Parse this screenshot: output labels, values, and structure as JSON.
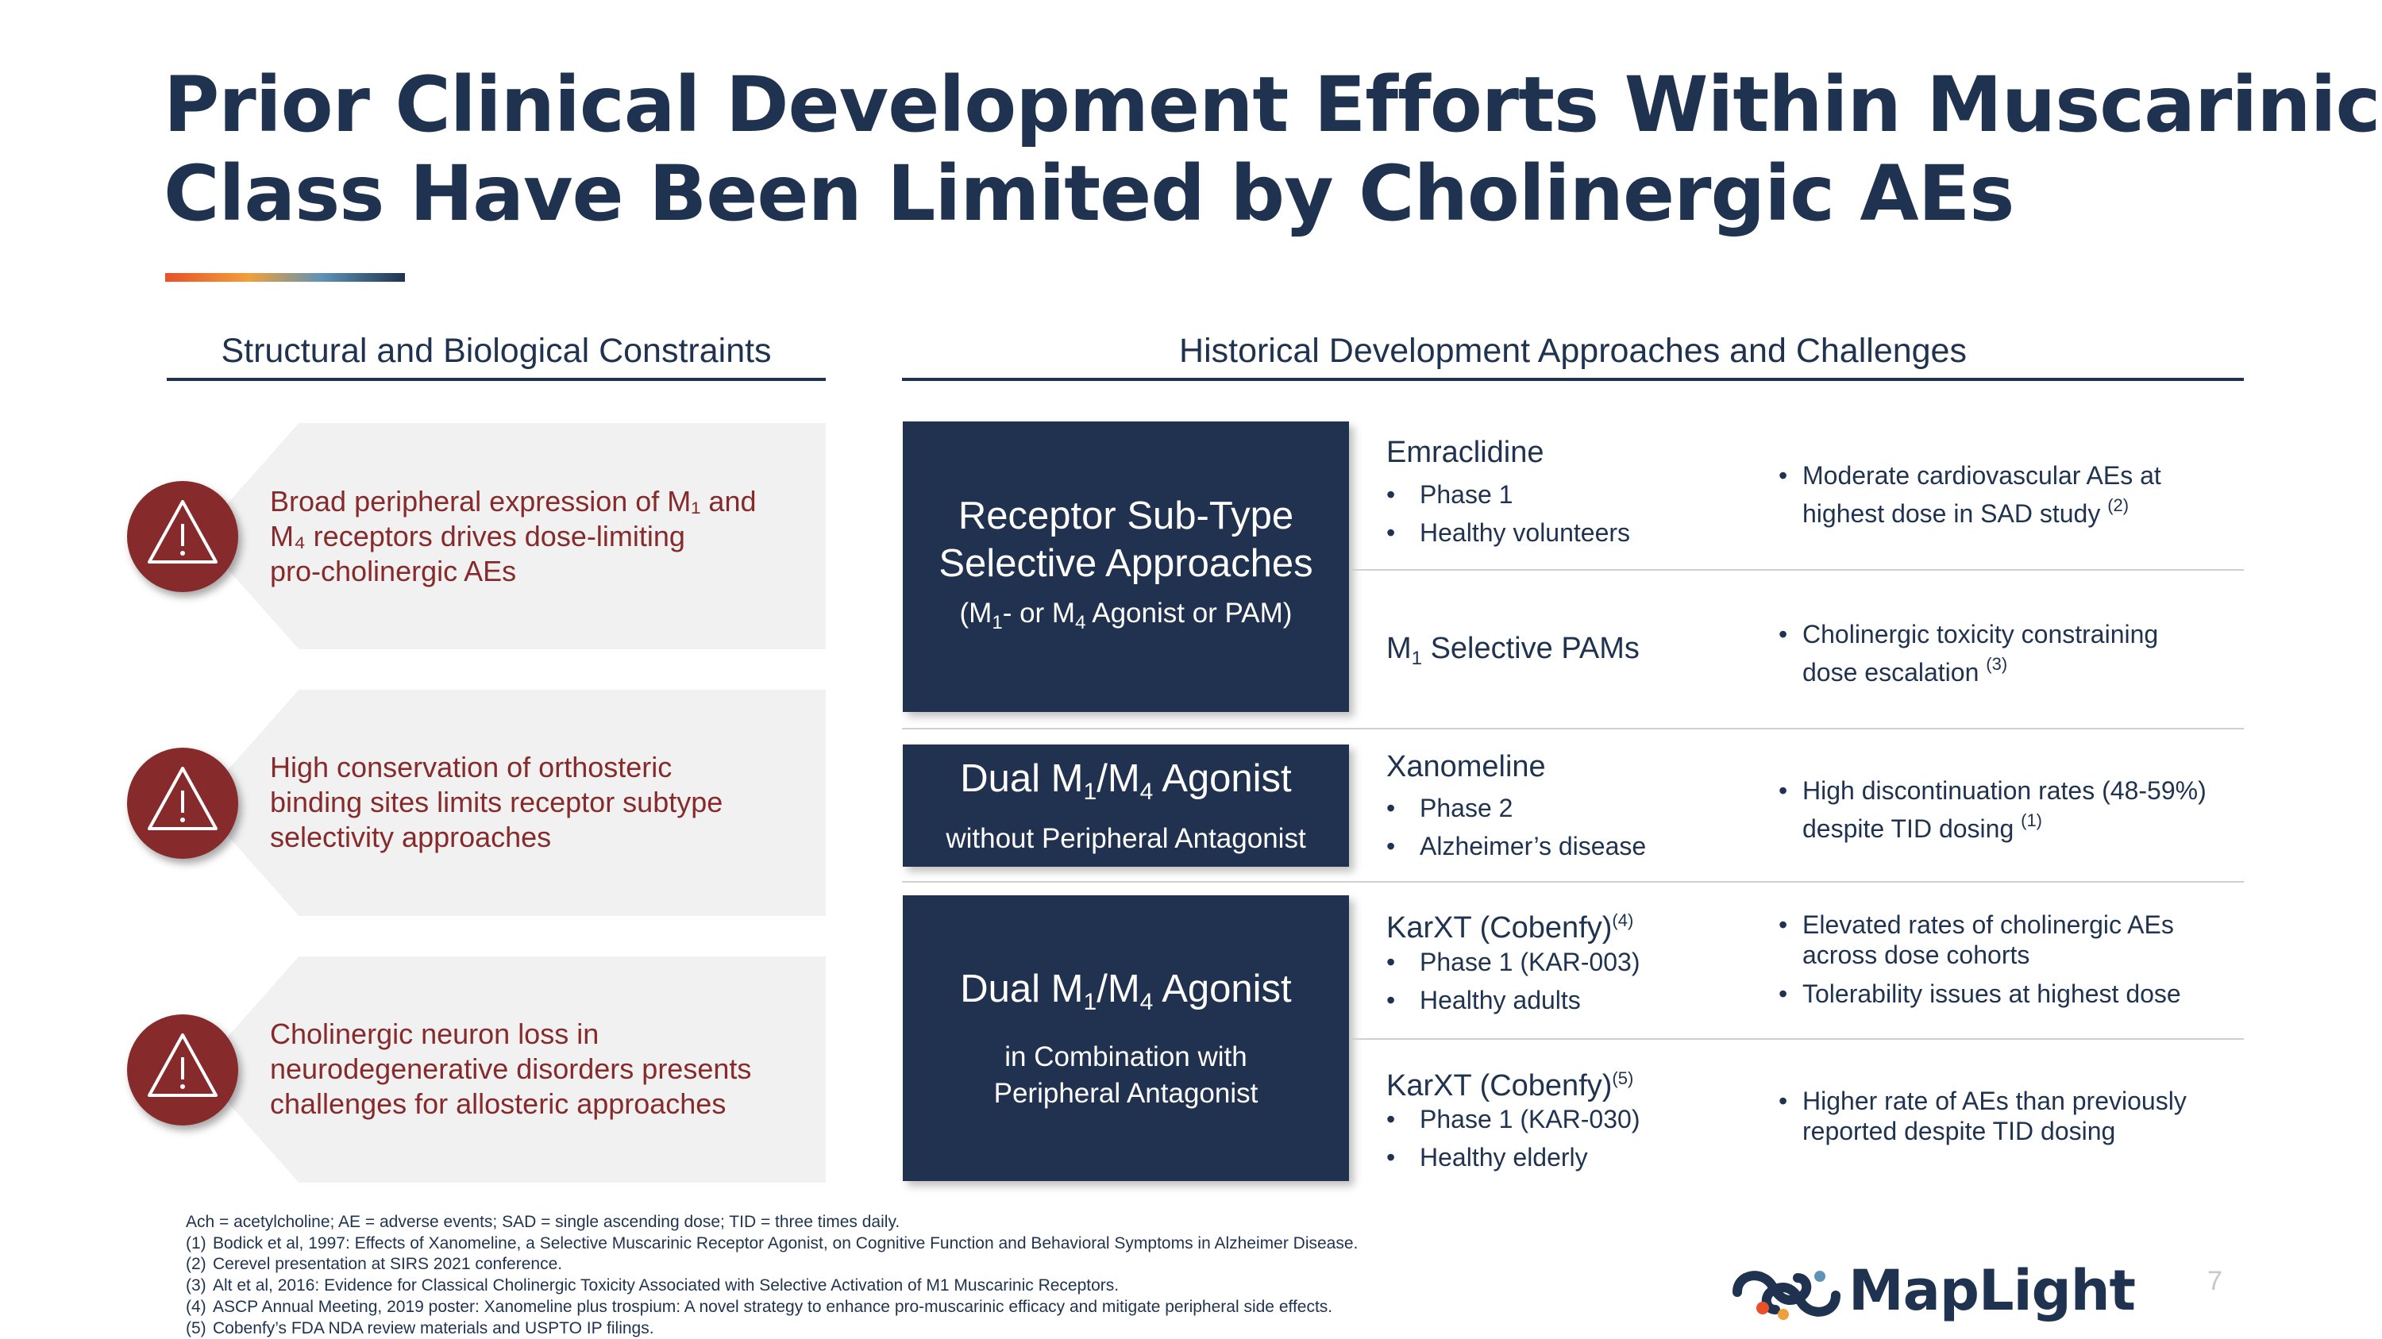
{
  "title": {
    "line1": "Prior Clinical Development Efforts Within Muscarinic",
    "line2": "Class Have Been Limited by Cholinergic AEs"
  },
  "left": {
    "heading": "Structural and Biological Constraints",
    "items": [
      {
        "icon": "warning-icon",
        "lines": [
          "Broad peripheral expression of M₁ and",
          "M₄ receptors drives dose-limiting",
          "pro-cholinergic AEs"
        ]
      },
      {
        "icon": "warning-icon",
        "lines": [
          "High conservation of orthosteric",
          "binding sites limits receptor subtype",
          "selectivity approaches"
        ]
      },
      {
        "icon": "warning-icon",
        "lines": [
          "Cholinergic neuron loss in",
          "neurodegenerative disorders presents",
          "challenges for allosteric approaches"
        ]
      }
    ]
  },
  "right": {
    "heading": "Historical Development Approaches and Challenges",
    "approaches": [
      {
        "title_l1": "Receptor Sub-Type",
        "title_l2": "Selective Approaches",
        "sub_a": "(M",
        "sub_1": "1",
        "sub_b": "- or M",
        "sub_4": "4",
        "sub_c": " Agonist or PAM)"
      },
      {
        "t_a": "Dual M",
        "t_1": "1",
        "t_b": "/M",
        "t_4": "4",
        "t_c": " Agonist",
        "sub": "without Peripheral Antagonist"
      },
      {
        "t_a": "Dual M",
        "t_1": "1",
        "t_b": "/M",
        "t_4": "4",
        "t_c": " Agonist",
        "sub_l1": "in Combination with",
        "sub_l2": "Peripheral Antagonist"
      }
    ],
    "drugs": [
      {
        "name": "Emraclidine",
        "bullets": [
          "Phase 1",
          "Healthy volunteers"
        ],
        "challenges": [
          {
            "text_l1": "Moderate cardiovascular AEs at",
            "text_l2": "highest dose in SAD study",
            "ref": "(2)"
          }
        ]
      },
      {
        "name_a": "M",
        "name_sub": "1",
        "name_b": " Selective PAMs",
        "challenges": [
          {
            "text_l1": "Cholinergic toxicity constraining",
            "text_l2": "dose escalation",
            "ref": "(3)"
          }
        ]
      },
      {
        "name": "Xanomeline",
        "bullets": [
          "Phase 2",
          "Alzheimer’s disease"
        ],
        "challenges": [
          {
            "text_l1": "High discontinuation rates (48-59%)",
            "text_l2": "despite TID dosing",
            "ref": "(1)"
          }
        ]
      },
      {
        "name": "KarXT (Cobenfy)",
        "ref": "(4)",
        "bullets": [
          "Phase 1 (KAR-003)",
          "Healthy adults"
        ],
        "challenges": [
          {
            "text_l1": "Elevated rates of cholinergic AEs",
            "text_l2": "across dose cohorts"
          },
          {
            "text_l1": "Tolerability issues at highest dose"
          }
        ]
      },
      {
        "name": "KarXT (Cobenfy)",
        "ref": "(5)",
        "bullets": [
          "Phase 1 (KAR-030)",
          "Healthy elderly"
        ],
        "challenges": [
          {
            "text_l1": "Higher rate of AEs than previously",
            "text_l2": "reported despite TID dosing"
          }
        ]
      }
    ],
    "bullet_char": "•"
  },
  "footnotes": {
    "abbrev": "Ach = acetylcholine; AE = adverse events; SAD = single ascending dose; TID = three times daily.",
    "notes": [
      {
        "n": "(1)",
        "text": "Bodick et al, 1997: Effects of Xanomeline, a Selective Muscarinic Receptor Agonist, on Cognitive Function and Behavioral Symptoms in Alzheimer Disease."
      },
      {
        "n": "(2)",
        "text": "Cerevel presentation at SIRS 2021 conference."
      },
      {
        "n": "(3)",
        "text": "Alt et al, 2016: Evidence for Classical Cholinergic Toxicity Associated with Selective Activation of M1 Muscarinic Receptors."
      },
      {
        "n": "(4)",
        "text": "ASCP Annual Meeting, 2019 poster: Xanomeline plus trospium: A novel strategy to enhance pro-muscarinic efficacy and mitigate peripheral side effects."
      },
      {
        "n": "(5)",
        "text": "Cobenfy’s FDA NDA review materials and USPTO IP filings."
      }
    ]
  },
  "logo": {
    "text": "MapLight",
    "icon": "maplight-logo-icon"
  },
  "page_number": "7",
  "colors": {
    "navy": "#20324f",
    "maroon": "#862a2b",
    "panel": "#f1f1f1"
  }
}
